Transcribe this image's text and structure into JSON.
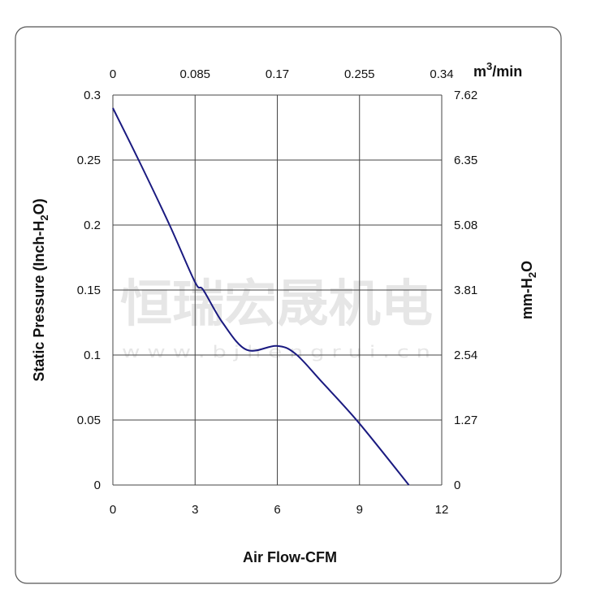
{
  "chart_data": {
    "type": "line",
    "xlabel": "Air Flow-CFM",
    "ylabel_left": "Static Pressure (Inch-H2O)",
    "ylabel_right": "mm-H2O",
    "xlabel_top": "m3/min",
    "xlim": [
      0,
      12
    ],
    "ylim": [
      0,
      0.3
    ],
    "x_ticks": [
      "0",
      "3",
      "6",
      "9",
      "12"
    ],
    "y_ticks_left": [
      "0",
      "0.05",
      "0.1",
      "0.15",
      "0.2",
      "0.25",
      "0.3"
    ],
    "y_ticks_right": [
      "0",
      "1.27",
      "2.54",
      "3.81",
      "5.08",
      "6.35",
      "7.62"
    ],
    "x_ticks_top": [
      "0",
      "0.085",
      "0.17",
      "0.255",
      "0.34"
    ],
    "grid": true,
    "series": [
      {
        "color": "#1a1a80",
        "x": [
          0,
          0.94,
          2.07,
          3.0,
          3.3,
          4.0,
          4.88,
          5.97,
          6.66,
          7.64,
          8.97,
          10.8
        ],
        "y": [
          0.29,
          0.25,
          0.2,
          0.156,
          0.15,
          0.125,
          0.104,
          0.107,
          0.101,
          0.079,
          0.048,
          0
        ]
      }
    ],
    "watermark": {
      "line1": "恒瑞宏晟机电",
      "line2": "w w w . b j h e n g r u i . c n"
    }
  }
}
